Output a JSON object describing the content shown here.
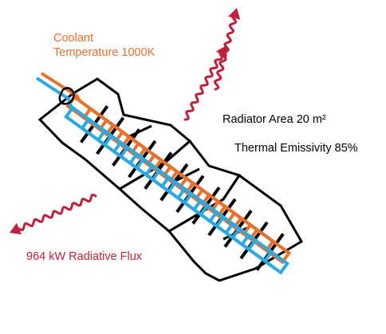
{
  "labels": {
    "coolant_line1": "Coolant",
    "coolant_line2": "Temperature 1000K",
    "radiator_area": "Radiator Area 20 m²",
    "thermal_emissivity": "Thermal Emissivity 85%",
    "radiative_flux": "964 kW Radiative Flux"
  },
  "colors": {
    "hot_coolant": "#E8702A",
    "cold_coolant": "#2BA9E0",
    "radiation_arrow": "#C0203A",
    "panel_frame": "#000000",
    "coolant_text": "#E8702A",
    "flux_text": "#C0203A",
    "body_text": "#000000"
  },
  "icons": {
    "radiation_arrows": "wavy-arrow-icon",
    "panel_hinge": "hinge-icon"
  }
}
